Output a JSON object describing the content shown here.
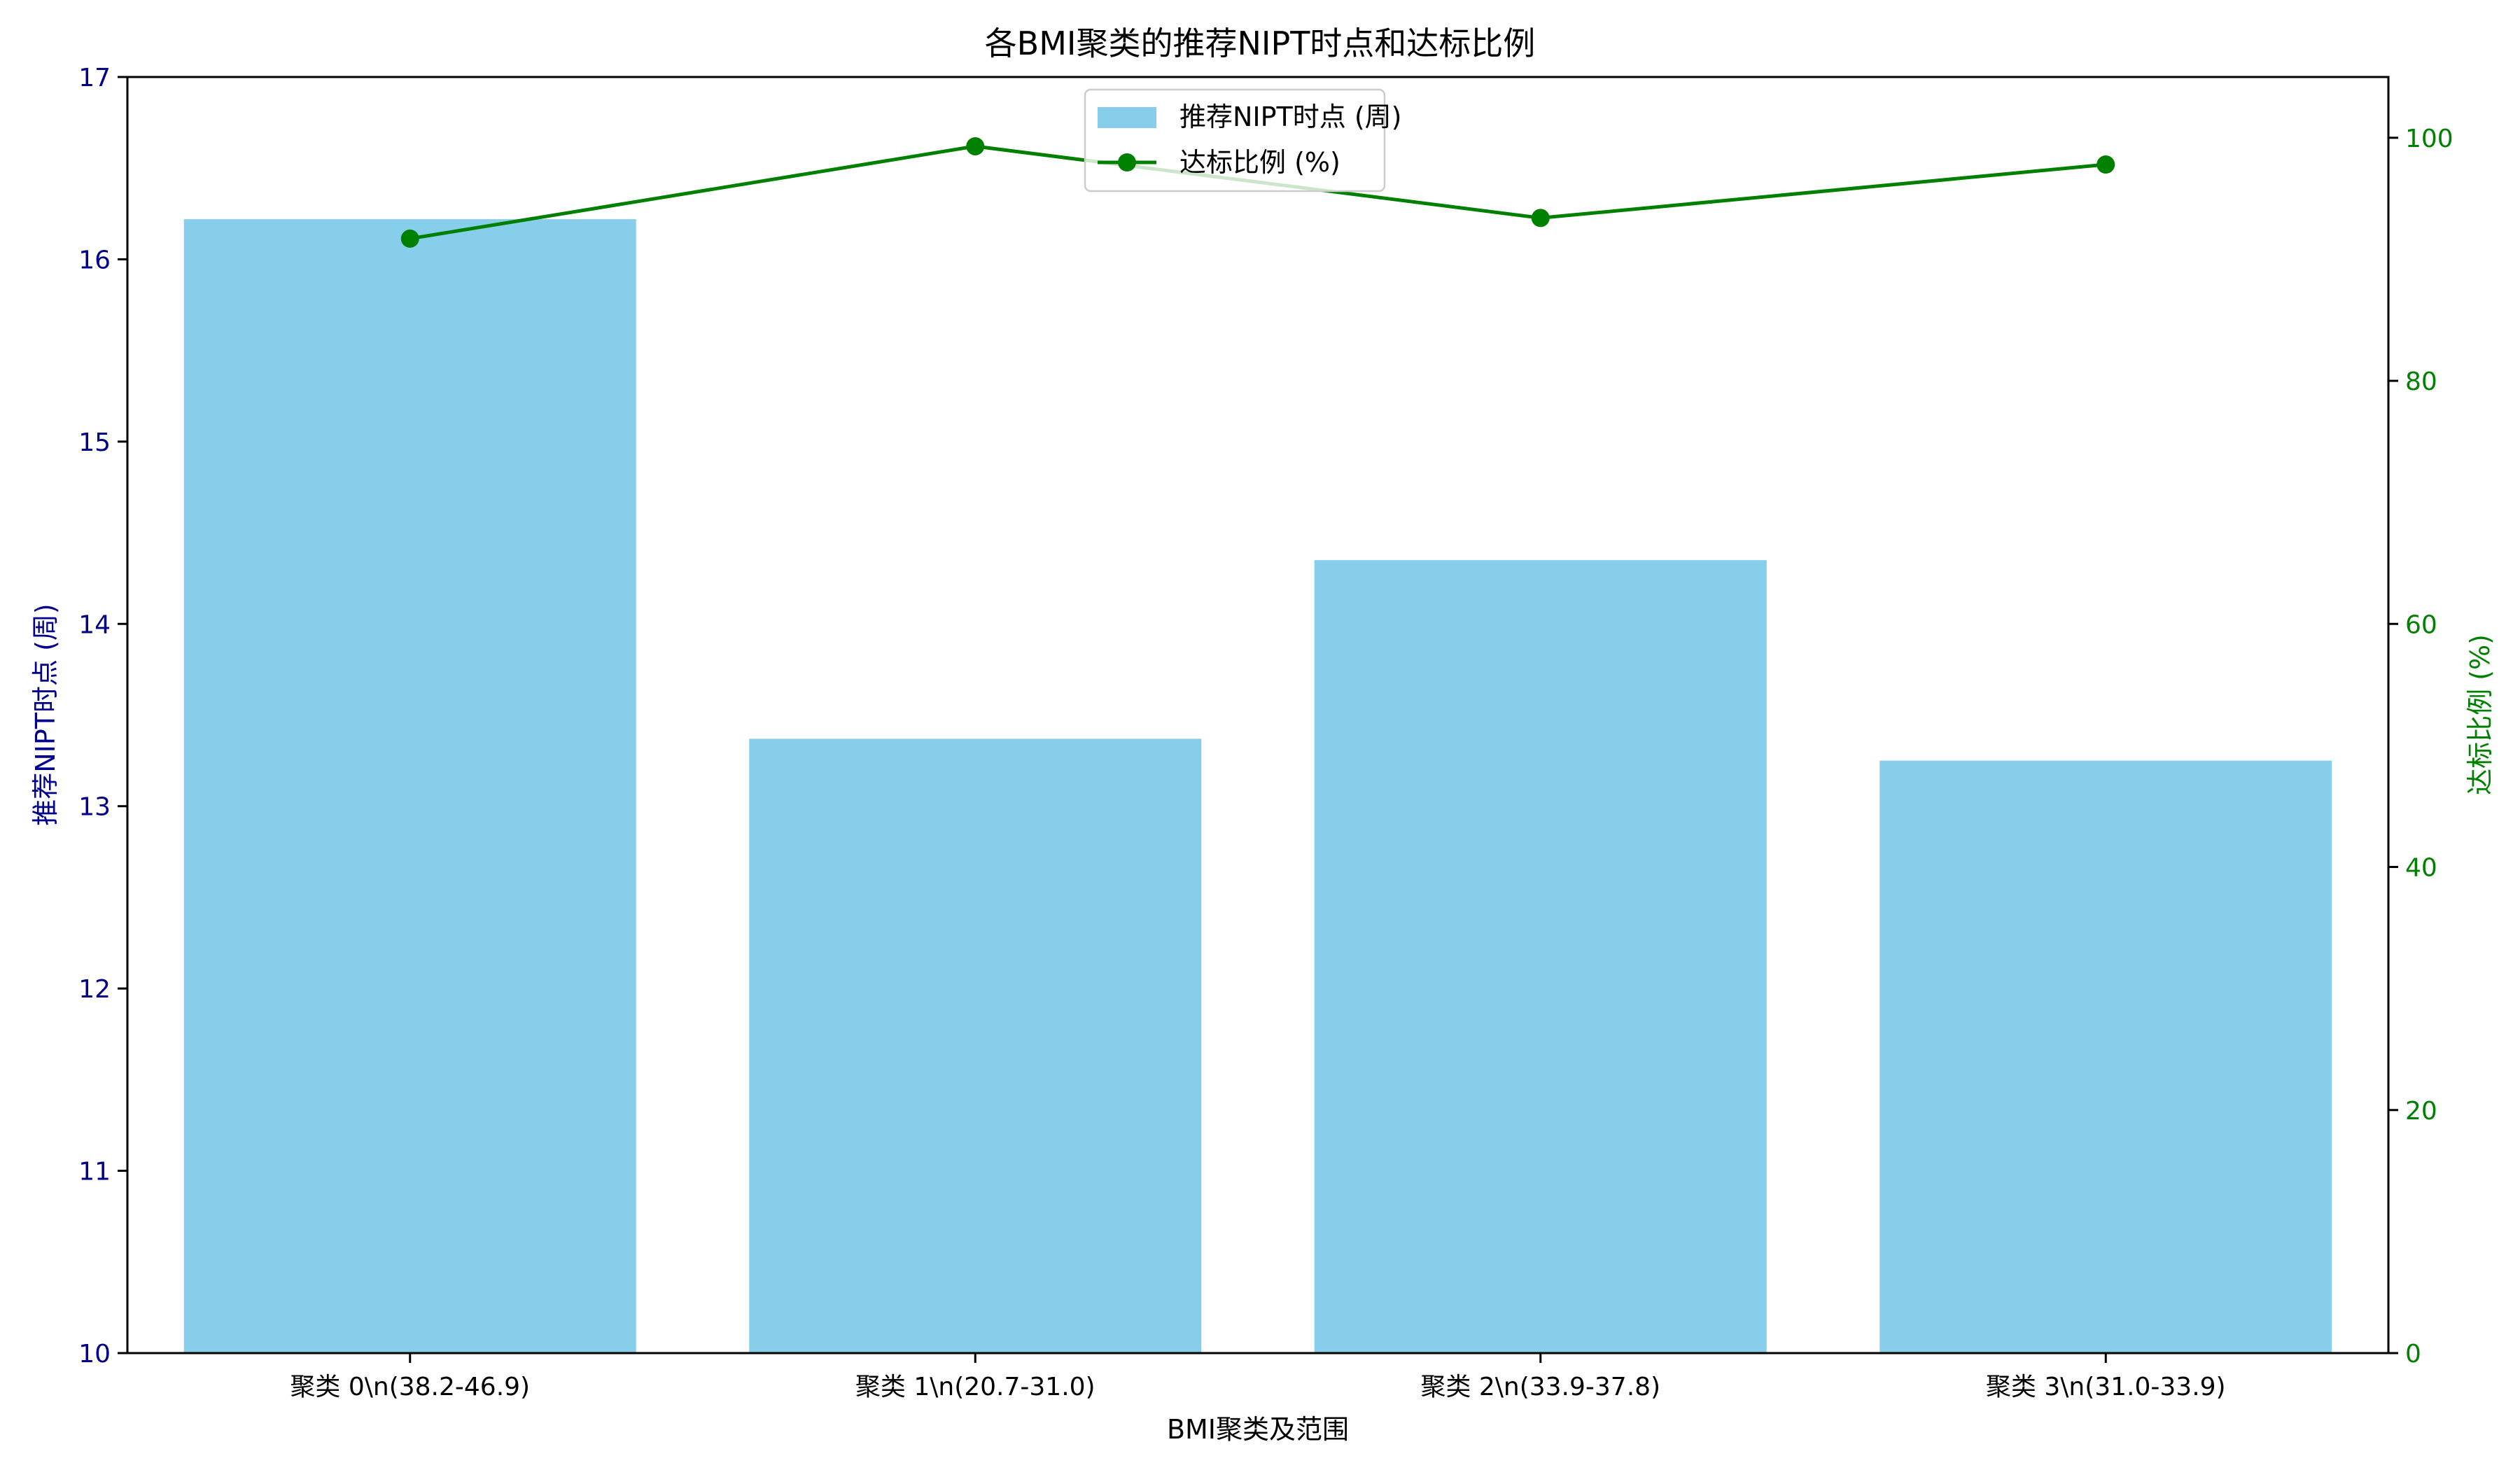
{
  "chart_data": {
    "type": "bar+line",
    "title": "各BMI聚类的推荐NIPT时点和达标比例",
    "xlabel": "BMI聚类及范围",
    "ylabel_left": "推荐NIPT时点 (周)",
    "ylabel_right": "达标比例 (%)",
    "categories": [
      "聚类 0\\n(38.2-46.9)",
      "聚类 1\\n(20.7-31.0)",
      "聚类 2\\n(33.9-37.8)",
      "聚类 3\\n(31.0-33.9)"
    ],
    "series": [
      {
        "name": "推荐NIPT时点 (周)",
        "type": "bar",
        "axis": "left",
        "values": [
          16.22,
          13.37,
          14.35,
          13.25
        ]
      },
      {
        "name": "达标比例 (%)",
        "type": "line",
        "axis": "right",
        "values": [
          91.7,
          99.3,
          93.4,
          97.8
        ]
      }
    ],
    "ylim_left": [
      10,
      17
    ],
    "ylim_right": [
      0,
      105
    ],
    "yticks_left": [
      "10",
      "11",
      "12",
      "13",
      "14",
      "15",
      "16",
      "17"
    ],
    "yticks_right": [
      "0",
      "20",
      "40",
      "60",
      "80",
      "100"
    ],
    "legend_position": "top-center",
    "grid": false,
    "colors": {
      "bar": "#87ceeb",
      "line": "#008000",
      "left_axis": "#00008b",
      "right_axis": "#008000",
      "frame": "#000000"
    }
  }
}
